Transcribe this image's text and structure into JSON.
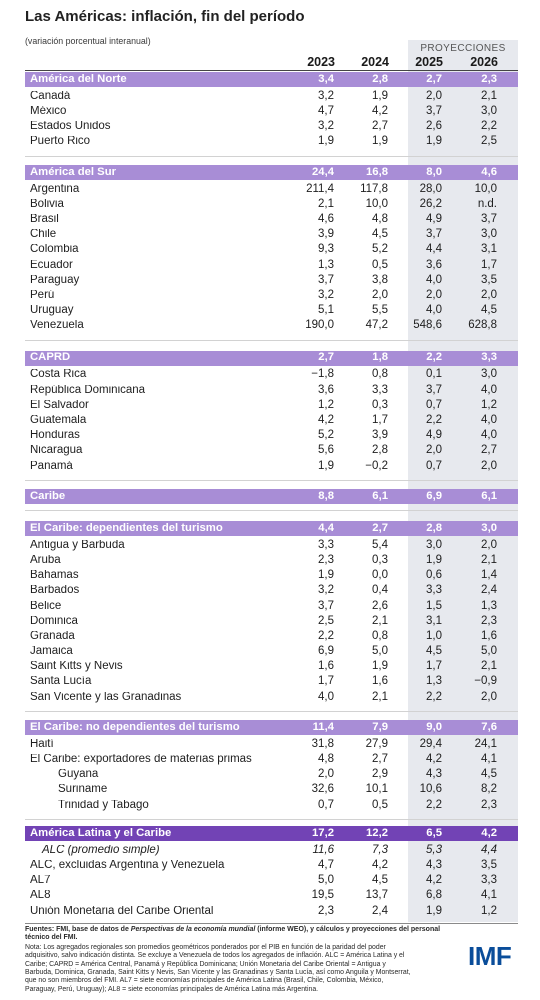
{
  "colors": {
    "text": "#1e1e1e",
    "projection_shade": "#e7e9ee",
    "logo": "#0a4d9a",
    "section_bar": "#a88dd6",
    "highlight_bar": "#7243b5"
  },
  "chart_data": {
    "type": "table",
    "title": "Las Américas: inflación, fin del período",
    "subtitle": "(variación porcentual interanual)",
    "projections_label": "PROYECCIONES",
    "columns": [
      "2023",
      "2024",
      "2025",
      "2026"
    ],
    "sections": [
      {
        "bar_color": "#a88dd6",
        "header": {
          "label": "América del Norte",
          "values": [
            "3,4",
            "2,8",
            "2,7",
            "2,3"
          ]
        },
        "rows": [
          {
            "label": "Canadá",
            "values": [
              "3,2",
              "1,9",
              "2,0",
              "2,1"
            ]
          },
          {
            "label": "México",
            "values": [
              "4,7",
              "4,2",
              "3,7",
              "3,0"
            ]
          },
          {
            "label": "Estados Unidos",
            "values": [
              "3,2",
              "2,7",
              "2,6",
              "2,2"
            ]
          },
          {
            "label": "Puerto Rico",
            "values": [
              "1,9",
              "1,9",
              "1,9",
              "2,5"
            ]
          }
        ]
      },
      {
        "bar_color": "#a88dd6",
        "header": {
          "label": "América del Sur",
          "values": [
            "24,4",
            "16,8",
            "8,0",
            "4,6"
          ]
        },
        "rows": [
          {
            "label": "Argentina",
            "values": [
              "211,4",
              "117,8",
              "28,0",
              "10,0"
            ]
          },
          {
            "label": "Bolivia",
            "values": [
              "2,1",
              "10,0",
              "26,2",
              "n.d."
            ]
          },
          {
            "label": "Brasil",
            "values": [
              "4,6",
              "4,8",
              "4,9",
              "3,7"
            ]
          },
          {
            "label": "Chile",
            "values": [
              "3,9",
              "4,5",
              "3,7",
              "3,0"
            ]
          },
          {
            "label": "Colombia",
            "values": [
              "9,3",
              "5,2",
              "4,4",
              "3,1"
            ]
          },
          {
            "label": "Ecuador",
            "values": [
              "1,3",
              "0,5",
              "3,6",
              "1,7"
            ]
          },
          {
            "label": "Paraguay",
            "values": [
              "3,7",
              "3,8",
              "4,0",
              "3,5"
            ]
          },
          {
            "label": "Perú",
            "values": [
              "3,2",
              "2,0",
              "2,0",
              "2,0"
            ]
          },
          {
            "label": "Uruguay",
            "values": [
              "5,1",
              "5,5",
              "4,0",
              "4,5"
            ]
          },
          {
            "label": "Venezuela",
            "values": [
              "190,0",
              "47,2",
              "548,6",
              "628,8"
            ]
          }
        ]
      },
      {
        "bar_color": "#a88dd6",
        "header": {
          "label": "CAPRD",
          "values": [
            "2,7",
            "1,8",
            "2,2",
            "3,3"
          ]
        },
        "rows": [
          {
            "label": "Costa Rica",
            "values": [
              "−1,8",
              "0,8",
              "0,1",
              "3,0"
            ]
          },
          {
            "label": "República Dominicana",
            "values": [
              "3,6",
              "3,3",
              "3,7",
              "4,0"
            ]
          },
          {
            "label": "El Salvador",
            "values": [
              "1,2",
              "0,3",
              "0,7",
              "1,2"
            ]
          },
          {
            "label": "Guatemala",
            "values": [
              "4,2",
              "1,7",
              "2,2",
              "4,0"
            ]
          },
          {
            "label": "Honduras",
            "values": [
              "5,2",
              "3,9",
              "4,9",
              "4,0"
            ]
          },
          {
            "label": "Nicaragua",
            "values": [
              "5,6",
              "2,8",
              "2,0",
              "2,7"
            ]
          },
          {
            "label": "Panamá",
            "values": [
              "1,9",
              "−0,2",
              "0,7",
              "2,0"
            ]
          }
        ]
      },
      {
        "bar_color": "#a88dd6",
        "header": {
          "label": "Caribe",
          "values": [
            "8,8",
            "6,1",
            "6,9",
            "6,1"
          ]
        },
        "rows": []
      },
      {
        "bar_color": "#a88dd6",
        "header": {
          "label": "El Caribe: dependientes del turismo",
          "values": [
            "4,4",
            "2,7",
            "2,8",
            "3,0"
          ]
        },
        "rows": [
          {
            "label": "Antigua y Barbuda",
            "values": [
              "3,3",
              "5,4",
              "3,0",
              "2,0"
            ]
          },
          {
            "label": "Aruba",
            "values": [
              "2,3",
              "0,3",
              "1,9",
              "2,1"
            ]
          },
          {
            "label": "Bahamas",
            "values": [
              "1,9",
              "0,0",
              "0,6",
              "1,4"
            ]
          },
          {
            "label": "Barbados",
            "values": [
              "3,2",
              "0,4",
              "3,3",
              "2,4"
            ]
          },
          {
            "label": "Belice",
            "values": [
              "3,7",
              "2,6",
              "1,5",
              "1,3"
            ]
          },
          {
            "label": "Dominica",
            "values": [
              "2,5",
              "2,1",
              "3,1",
              "2,3"
            ]
          },
          {
            "label": "Granada",
            "values": [
              "2,2",
              "0,8",
              "1,0",
              "1,6"
            ]
          },
          {
            "label": "Jamaica",
            "values": [
              "6,9",
              "5,0",
              "4,5",
              "5,0"
            ]
          },
          {
            "label": "Saint Kitts y Nevis",
            "values": [
              "1,6",
              "1,9",
              "1,7",
              "2,1"
            ]
          },
          {
            "label": "Santa Lucía",
            "values": [
              "1,7",
              "1,6",
              "1,3",
              "−0,9"
            ]
          },
          {
            "label": "San Vicente y las Granadinas",
            "values": [
              "4,0",
              "2,1",
              "2,2",
              "2,0"
            ]
          }
        ]
      },
      {
        "bar_color": "#a88dd6",
        "header": {
          "label": "El Caribe: no dependientes del turismo",
          "values": [
            "11,4",
            "7,9",
            "9,0",
            "7,6"
          ]
        },
        "rows": [
          {
            "label": "Haití",
            "values": [
              "31,8",
              "27,9",
              "29,4",
              "24,1"
            ]
          },
          {
            "label": "El Caribe: exportadores de materias primas",
            "values": [
              "4,8",
              "2,7",
              "4,2",
              "4,1"
            ]
          },
          {
            "label": "Guyana",
            "level": 2,
            "values": [
              "2,0",
              "2,9",
              "4,3",
              "4,5"
            ]
          },
          {
            "label": "Suriname",
            "level": 2,
            "values": [
              "32,6",
              "10,1",
              "10,6",
              "8,2"
            ]
          },
          {
            "label": "Trinidad y Tabago",
            "level": 2,
            "values": [
              "0,7",
              "0,5",
              "2,2",
              "2,3"
            ]
          }
        ]
      },
      {
        "bar_color": "#7243b5",
        "header": {
          "label": "América Latina y el Caribe",
          "values": [
            "17,2",
            "12,2",
            "6,5",
            "4,2"
          ]
        },
        "rows": [
          {
            "label": "ALC (promedio simple)",
            "level": 1,
            "italic": true,
            "values": [
              "11,6",
              "7,3",
              "5,3",
              "4,4"
            ]
          },
          {
            "label": "ALC, excluidas Argentina y Venezuela",
            "values": [
              "4,7",
              "4,2",
              "4,3",
              "3,5"
            ]
          },
          {
            "label": "AL7",
            "values": [
              "5,0",
              "4,5",
              "4,2",
              "3,3"
            ]
          },
          {
            "label": "AL8",
            "values": [
              "19,5",
              "13,7",
              "6,8",
              "4,1"
            ]
          },
          {
            "label": "Unión Monetaria del Caribe Oriental",
            "values": [
              "2,3",
              "2,4",
              "1,9",
              "1,2"
            ]
          }
        ]
      }
    ]
  },
  "footer": {
    "sources": {
      "prefix": "Fuentes: FMI, base de datos de ",
      "publication": "Perspectivas de la economía mundial",
      "suffix": " (informe WEO), y cálculos y proyecciones del personal técnico del FMI."
    },
    "note_lines": [
      "Nota: Los agregados regionales son promedios geométricos ponderados por el PIB en función de la paridad del poder",
      "adquisitivo, salvo indicación distinta. Se excluye a Venezuela de todos los agregados de inflación. ALC = América Latina y el",
      "Caribe; CAPRD = América Central, Panamá y República Dominicana; Unión Monetaria del Caribe Oriental = Antigua y",
      "Barbuda, Dominica, Granada, Saint Kitts y Nevis, San Vicente y las Granadinas y Santa Lucía, así como Anguila y Montserrat,",
      "que no son miembros del FMI. AL7 = siete economías principales de América Latina (Brasil, Chile, Colombia, México,",
      "Paraguay, Perú, Uruguay); AL8 = siete economías principales de América Latina más Argentina."
    ]
  },
  "logo": {
    "text": "IMF"
  }
}
